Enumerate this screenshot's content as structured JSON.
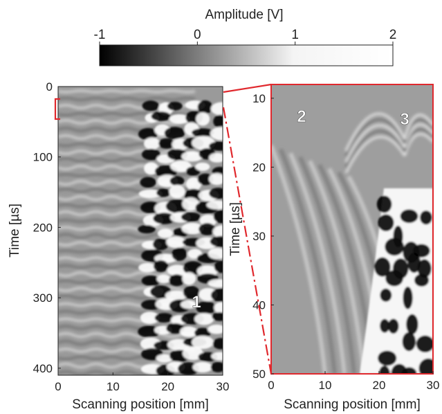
{
  "colorbar": {
    "title": "Amplitude [V]",
    "ticks": [
      "-1",
      "0",
      "1",
      "2"
    ],
    "range": [
      -1,
      2
    ],
    "colormap": "gray"
  },
  "chart_data": [
    {
      "type": "heatmap",
      "xlabel": "Scanning position [mm]",
      "ylabel": "Time [µs]",
      "xlim": [
        0,
        30
      ],
      "ylim": [
        0,
        410
      ],
      "y_reversed": true,
      "xticks": [
        "0",
        "10",
        "20",
        "30"
      ],
      "yticks": [
        "0",
        "100",
        "200",
        "300",
        "400"
      ],
      "annotations": [
        {
          "text": "1",
          "x": 25,
          "y": 320
        }
      ],
      "highlight_time_range": [
        10,
        50
      ]
    },
    {
      "type": "heatmap",
      "xlabel": "Scanning position [mm]",
      "ylabel": "Time [µs]",
      "xlim": [
        0,
        30
      ],
      "ylim": [
        8,
        50
      ],
      "y_reversed": true,
      "xticks": [
        "0",
        "10",
        "20",
        "30"
      ],
      "yticks": [
        "10",
        "20",
        "30",
        "40",
        "50"
      ],
      "annotations": [
        {
          "text": "2",
          "x": 5,
          "y": 12
        },
        {
          "text": "3",
          "x": 25,
          "y": 12.5
        }
      ]
    }
  ],
  "colors": {
    "zoom_box": "#e0282d",
    "background": "#ffffff"
  }
}
